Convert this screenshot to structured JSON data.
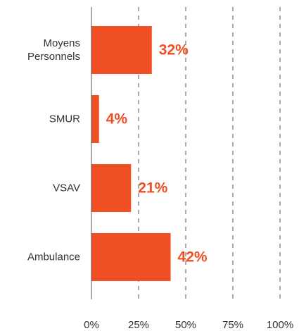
{
  "chart_data": {
    "type": "bar",
    "orientation": "horizontal",
    "categories": [
      "Moyens Personnels",
      "SMUR",
      "VSAV",
      "Ambulance"
    ],
    "values": [
      32,
      4,
      21,
      42
    ],
    "value_labels": [
      "32%",
      "4%",
      "21%",
      "42%"
    ],
    "color": "#f04e23",
    "xlim": [
      0,
      100
    ],
    "xticks": [
      {
        "value": 0,
        "label": "0%"
      },
      {
        "value": 25,
        "label": "25%"
      },
      {
        "value": 50,
        "label": "50%"
      },
      {
        "value": 75,
        "label": "75%"
      },
      {
        "value": 100,
        "label": "100%"
      }
    ],
    "grid": true
  }
}
